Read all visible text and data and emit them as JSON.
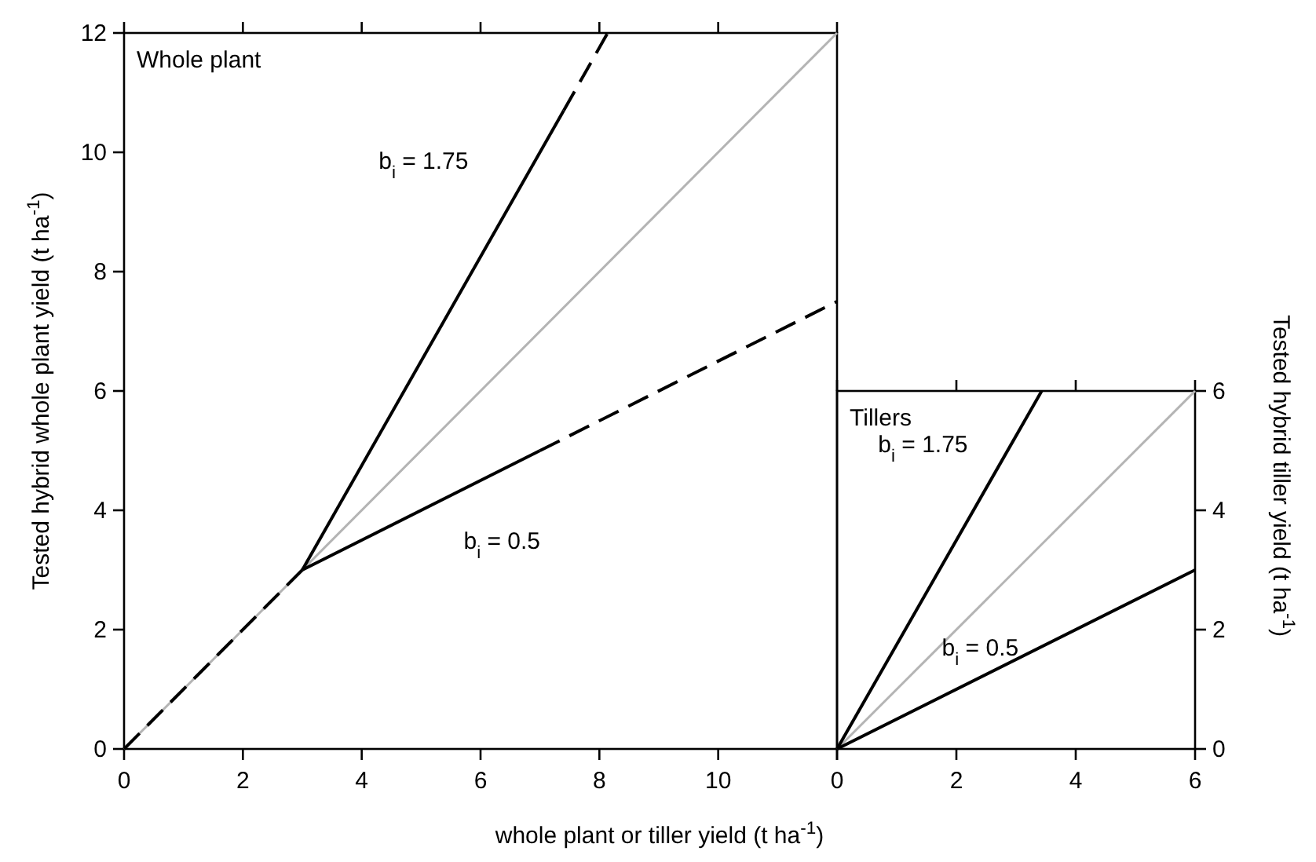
{
  "chart_data": [
    {
      "type": "line",
      "title": "Whole plant",
      "xlabel": "whole plant or tiller yield (t ha$^{-1}$)",
      "ylabel": "Tested hybrid whole plant yield (t ha$^{-1}$)",
      "xlim": [
        0,
        12
      ],
      "ylim": [
        0,
        12
      ],
      "xticks": [
        0,
        2,
        4,
        6,
        8,
        10,
        {
          "value": 12,
          "label": null
        }
      ],
      "yticks": [
        0,
        2,
        4,
        6,
        8,
        10,
        12
      ],
      "grid": false,
      "series": [
        {
          "color": "#b4b4b4",
          "x": [
            0,
            12
          ],
          "values": [
            0,
            12
          ],
          "line_style": "solid"
        },
        {
          "color": "#000000",
          "x": [
            0,
            3
          ],
          "values": [
            0,
            3
          ],
          "line_style": "dashed"
        },
        {
          "color": "#000000",
          "x": [
            3,
            7.4
          ],
          "values": [
            3,
            10.7
          ],
          "line_style": "solid"
        },
        {
          "color": "#000000",
          "x": [
            7.4,
            8.14
          ],
          "values": [
            10.7,
            12
          ],
          "line_style": "dashed"
        },
        {
          "color": "#000000",
          "x": [
            3,
            7
          ],
          "values": [
            3,
            5
          ],
          "line_style": "solid"
        },
        {
          "color": "#000000",
          "x": [
            7,
            12
          ],
          "values": [
            5,
            7.5
          ],
          "line_style": "dashed"
        }
      ],
      "annotations": [
        "b$_{i}$ = 1.75",
        "b$_{i}$ = 0.5"
      ]
    },
    {
      "type": "line",
      "title": "Tillers",
      "y2label": "Tested hybrid tiller yield (t ha$^{-1}$)",
      "xlim": [
        0,
        6
      ],
      "y2lim": [
        0,
        6
      ],
      "xticks": [
        0,
        2,
        4,
        6
      ],
      "y2ticks": [
        0,
        2,
        4,
        6
      ],
      "grid": false,
      "series": [
        {
          "color": "#b4b4b4",
          "x": [
            0,
            6
          ],
          "values": [
            0,
            6
          ],
          "line_style": "solid",
          "axis": "y2"
        },
        {
          "color": "#000000",
          "x": [
            0,
            3.43
          ],
          "values": [
            0,
            6
          ],
          "line_style": "solid",
          "axis": "y2"
        },
        {
          "color": "#000000",
          "x": [
            0,
            6
          ],
          "values": [
            0,
            3
          ],
          "line_style": "solid",
          "axis": "y2"
        }
      ],
      "annotations": [
        "b$_{i}$ = 1.75",
        "b$_{i}$ = 0.5"
      ]
    }
  ]
}
